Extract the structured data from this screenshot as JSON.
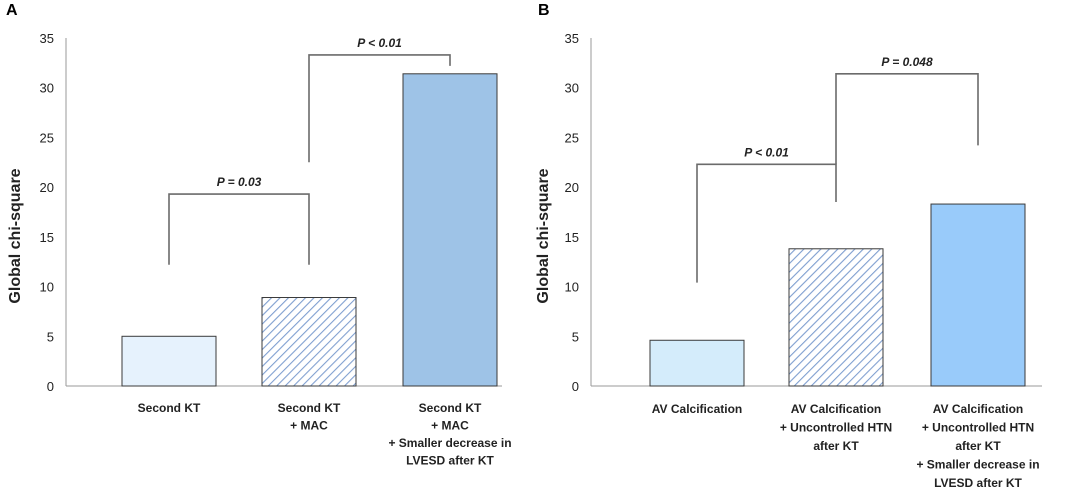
{
  "colors": {
    "light_blue": "#e6f2fd",
    "hatch_blue": "#7f9fd0",
    "mid_blue": "#9ec3e7",
    "sky_blue": "#d4ecfb",
    "bright_blue": "#99cbfa"
  },
  "chart_data": [
    {
      "type": "bar",
      "panel": "A",
      "ylabel": "Global chi-square",
      "xlabel": "",
      "ylim": [
        0,
        35
      ],
      "yticks": [
        "0",
        "5",
        "10",
        "15",
        "20",
        "25",
        "30",
        "35"
      ],
      "categories": [
        [
          "Second KT"
        ],
        [
          "Second KT",
          "+ MAC"
        ],
        [
          "Second KT",
          "+ MAC",
          "+ Smaller decrease in",
          "LVESD after KT"
        ]
      ],
      "values": [
        5.0,
        8.9,
        31.4
      ],
      "bar_styles": [
        "light_blue",
        "hatch",
        "mid_blue"
      ],
      "comparisons": [
        {
          "label": "P = 0.03",
          "from": 0,
          "to": 1,
          "level": 19.3,
          "left_end": 12.2,
          "right_end": 12.2
        },
        {
          "label": "P < 0.01",
          "from": 1,
          "to": 2,
          "level": 33.3,
          "left_end": 22.5,
          "right_end": 32.2
        }
      ]
    },
    {
      "type": "bar",
      "panel": "B",
      "ylabel": "Global chi-square",
      "xlabel": "",
      "ylim": [
        0,
        35
      ],
      "yticks": [
        "0",
        "5",
        "10",
        "15",
        "20",
        "25",
        "30",
        "35"
      ],
      "categories": [
        [
          "AV Calcification"
        ],
        [
          "AV Calcification",
          "+ Uncontrolled HTN",
          "after KT"
        ],
        [
          "AV Calcification",
          "+ Uncontrolled HTN",
          "after KT",
          "+ Smaller decrease in",
          "LVESD after KT"
        ]
      ],
      "values": [
        4.6,
        13.8,
        18.3
      ],
      "bar_styles": [
        "sky_blue",
        "hatch",
        "bright_blue"
      ],
      "comparisons": [
        {
          "label": "P < 0.01",
          "from": 0,
          "to": 1,
          "level": 22.3,
          "left_end": 10.4,
          "right_end": 18.5
        },
        {
          "label": "P = 0.048",
          "from": 1,
          "to": 2,
          "level": 31.4,
          "left_end": 22.3,
          "right_end": 24.2
        }
      ]
    }
  ]
}
